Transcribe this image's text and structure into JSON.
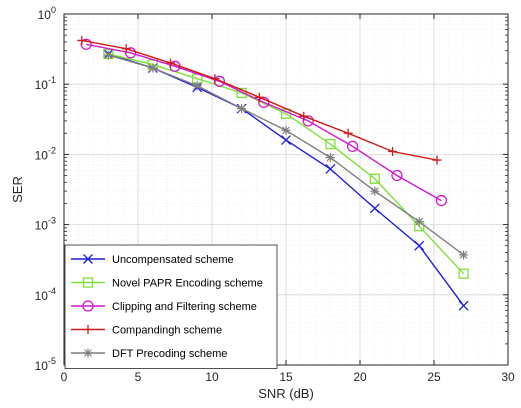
{
  "chart_data": {
    "type": "line",
    "xlabel": "SNR (dB)",
    "ylabel": "SER",
    "xlim": [
      0,
      30
    ],
    "ylim": [
      1e-05,
      1
    ],
    "yscale": "log",
    "grid": true,
    "minor_grid": true,
    "legend_position": "bottom-left",
    "x_ticks": [
      0,
      5,
      10,
      15,
      20,
      25,
      30
    ],
    "x_tick_labels": [
      "0",
      "5",
      "10",
      "15",
      "20",
      "25",
      "30"
    ],
    "y_ticks": [
      0,
      -1,
      -2,
      -3,
      -4,
      -5
    ],
    "y_tick_labels": [
      "10^0",
      "10^-1",
      "10^-2",
      "10^-3",
      "10^-4",
      "10^-5"
    ],
    "series": [
      {
        "name": "Uncompensated scheme",
        "color": "#1f1fd6",
        "marker": "x",
        "x": [
          3,
          6,
          9,
          12,
          15,
          18,
          21,
          24,
          27
        ],
        "y": [
          0.27,
          0.17,
          0.09,
          0.045,
          0.016,
          0.0062,
          0.0017,
          0.0005,
          7e-05
        ]
      },
      {
        "name": "Novel PAPR Encoding scheme",
        "color": "#7fe03a",
        "marker": "square",
        "x": [
          3,
          6,
          9,
          12,
          15,
          18,
          21,
          24,
          27
        ],
        "y": [
          0.27,
          0.19,
          0.12,
          0.075,
          0.038,
          0.014,
          0.0045,
          0.00095,
          0.0002
        ]
      },
      {
        "name": "Clipping and Filtering scheme",
        "color": "#d01ad0",
        "marker": "circle",
        "x": [
          1.5,
          4.5,
          7.5,
          10.5,
          13.5,
          16.5,
          19.5,
          22.5,
          25.5
        ],
        "y": [
          0.37,
          0.28,
          0.18,
          0.11,
          0.055,
          0.03,
          0.013,
          0.005,
          0.0022
        ]
      },
      {
        "name": "Compandingh scheme",
        "color": "#d01a1a",
        "marker": "plus",
        "x": [
          1.2,
          4.2,
          7.2,
          10.2,
          13.2,
          16.2,
          19.2,
          22.2,
          25.2
        ],
        "y": [
          0.42,
          0.32,
          0.2,
          0.12,
          0.065,
          0.035,
          0.02,
          0.011,
          0.0083
        ]
      },
      {
        "name": "DFT Precoding scheme",
        "color": "#7f7f7f",
        "marker": "asterisk",
        "x": [
          3,
          6,
          9,
          12,
          15,
          18,
          21,
          24,
          27
        ],
        "y": [
          0.26,
          0.17,
          0.095,
          0.045,
          0.022,
          0.009,
          0.003,
          0.0011,
          0.00037
        ]
      }
    ]
  }
}
